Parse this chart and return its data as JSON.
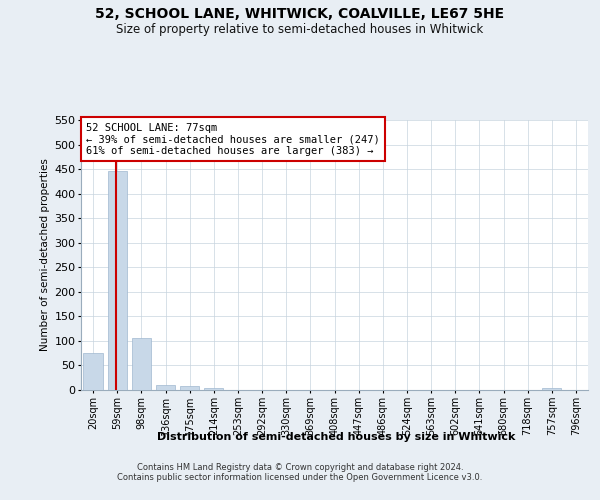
{
  "title": "52, SCHOOL LANE, WHITWICK, COALVILLE, LE67 5HE",
  "subtitle": "Size of property relative to semi-detached houses in Whitwick",
  "xlabel": "Distribution of semi-detached houses by size in Whitwick",
  "ylabel": "Number of semi-detached properties",
  "property_size": 77,
  "annotation_line1": "52 SCHOOL LANE: 77sqm",
  "annotation_line2": "← 39% of semi-detached houses are smaller (247)",
  "annotation_line3": "61% of semi-detached houses are larger (383) →",
  "footer_line1": "Contains HM Land Registry data © Crown copyright and database right 2024.",
  "footer_line2": "Contains public sector information licensed under the Open Government Licence v3.0.",
  "bar_color": "#c8d8e8",
  "bar_edge_color": "#a0b8d0",
  "property_line_color": "#cc0000",
  "annotation_box_color": "#cc0000",
  "ylim": [
    0,
    550
  ],
  "yticks": [
    0,
    50,
    100,
    150,
    200,
    250,
    300,
    350,
    400,
    450,
    500,
    550
  ],
  "bins": [
    20,
    59,
    98,
    136,
    175,
    214,
    253,
    292,
    330,
    369,
    408,
    447,
    486,
    524,
    563,
    602,
    641,
    680,
    718,
    757,
    796
  ],
  "bin_labels": [
    "20sqm",
    "59sqm",
    "98sqm",
    "136sqm",
    "175sqm",
    "214sqm",
    "253sqm",
    "292sqm",
    "330sqm",
    "369sqm",
    "408sqm",
    "447sqm",
    "486sqm",
    "524sqm",
    "563sqm",
    "602sqm",
    "641sqm",
    "680sqm",
    "718sqm",
    "757sqm",
    "796sqm"
  ],
  "counts": [
    75,
    447,
    105,
    10,
    8,
    4,
    0,
    0,
    0,
    0,
    0,
    0,
    0,
    0,
    0,
    0,
    0,
    0,
    0,
    4,
    0
  ],
  "background_color": "#e8eef4",
  "plot_background": "#ffffff"
}
